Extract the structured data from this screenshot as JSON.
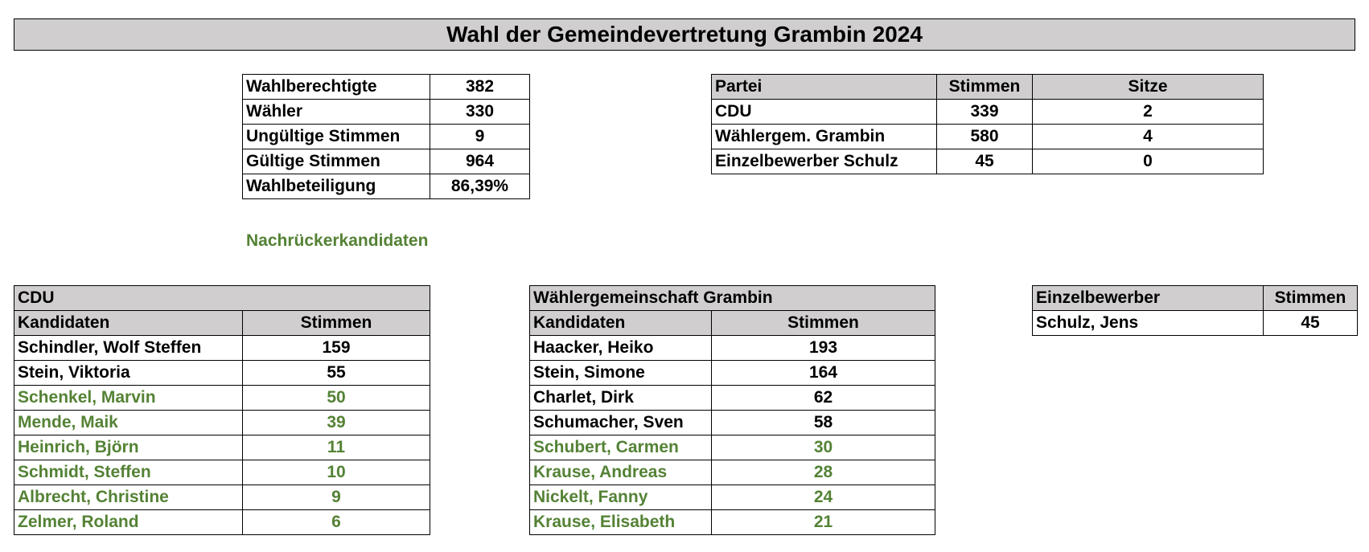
{
  "title": "Wahl der Gemeindevertretung Grambin 2024",
  "colors": {
    "header_bg": "#d0cece",
    "successor_green": "#548235"
  },
  "stats": [
    {
      "label": "Wahlberechtigte",
      "value": "382"
    },
    {
      "label": "Wähler",
      "value": "330"
    },
    {
      "label": "Ungültige Stimmen",
      "value": "9"
    },
    {
      "label": "Gültige Stimmen",
      "value": "964"
    },
    {
      "label": "Wahlbeteiligung",
      "value": "86,39%"
    }
  ],
  "parties": {
    "headers": [
      "Partei",
      "Stimmen",
      "Sitze"
    ],
    "rows": [
      {
        "name": "CDU",
        "votes": "339",
        "seats": "2"
      },
      {
        "name": "Wählergem. Grambin",
        "votes": "580",
        "seats": "4"
      },
      {
        "name": "Einzelbewerber Schulz",
        "votes": "45",
        "seats": "0"
      }
    ]
  },
  "note": "Nachrückerkandidaten",
  "cdu": {
    "title": "CDU",
    "headers": [
      "Kandidaten",
      "Stimmen"
    ],
    "rows": [
      {
        "name": "Schindler, Wolf Steffen",
        "votes": "159",
        "successor": false
      },
      {
        "name": "Stein, Viktoria",
        "votes": "55",
        "successor": false
      },
      {
        "name": "Schenkel, Marvin",
        "votes": "50",
        "successor": true
      },
      {
        "name": "Mende, Maik",
        "votes": "39",
        "successor": true
      },
      {
        "name": "Heinrich, Björn",
        "votes": "11",
        "successor": true
      },
      {
        "name": "Schmidt, Steffen",
        "votes": "10",
        "successor": true
      },
      {
        "name": "Albrecht, Christine",
        "votes": "9",
        "successor": true
      },
      {
        "name": "Zelmer, Roland",
        "votes": "6",
        "successor": true
      }
    ]
  },
  "wg": {
    "title": "Wählergemeinschaft Grambin",
    "headers": [
      "Kandidaten",
      "Stimmen"
    ],
    "rows": [
      {
        "name": "Haacker, Heiko",
        "votes": "193",
        "successor": false
      },
      {
        "name": "Stein, Simone",
        "votes": "164",
        "successor": false
      },
      {
        "name": "Charlet, Dirk",
        "votes": "62",
        "successor": false
      },
      {
        "name": "Schumacher, Sven",
        "votes": "58",
        "successor": false
      },
      {
        "name": "Schubert, Carmen",
        "votes": "30",
        "successor": true
      },
      {
        "name": "Krause, Andreas",
        "votes": "28",
        "successor": true
      },
      {
        "name": "Nickelt, Fanny",
        "votes": "24",
        "successor": true
      },
      {
        "name": "Krause, Elisabeth",
        "votes": "21",
        "successor": true
      }
    ]
  },
  "single": {
    "headers": [
      "Einzelbewerber",
      "Stimmen"
    ],
    "rows": [
      {
        "name": "Schulz, Jens",
        "votes": "45"
      }
    ]
  }
}
